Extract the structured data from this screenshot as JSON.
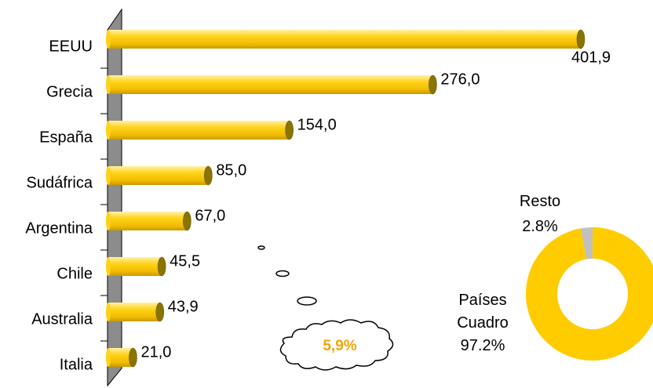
{
  "chart_data": [
    {
      "type": "bar",
      "orientation": "horizontal",
      "categories": [
        "EEUU",
        "Grecia",
        "España",
        "Sudáfrica",
        "Argentina",
        "Chile",
        "Australia",
        "Italia"
      ],
      "values": [
        401.9,
        276.0,
        154.0,
        85.0,
        67.0,
        45.5,
        43.9,
        21.0
      ],
      "value_labels": [
        "401,9",
        "276,0",
        "154,0",
        "85,0",
        "67,0",
        "45,5",
        "43,9",
        "21,0"
      ],
      "color": "#ffcc00",
      "annotation": "5,9%"
    },
    {
      "type": "donut",
      "categories": [
        "Países Cuadro",
        "Resto"
      ],
      "values": [
        97.2,
        2.8
      ],
      "value_labels": [
        "97.2%",
        "2.8%"
      ],
      "colors": [
        "#ffcc00",
        "#c0c0c0"
      ]
    }
  ]
}
